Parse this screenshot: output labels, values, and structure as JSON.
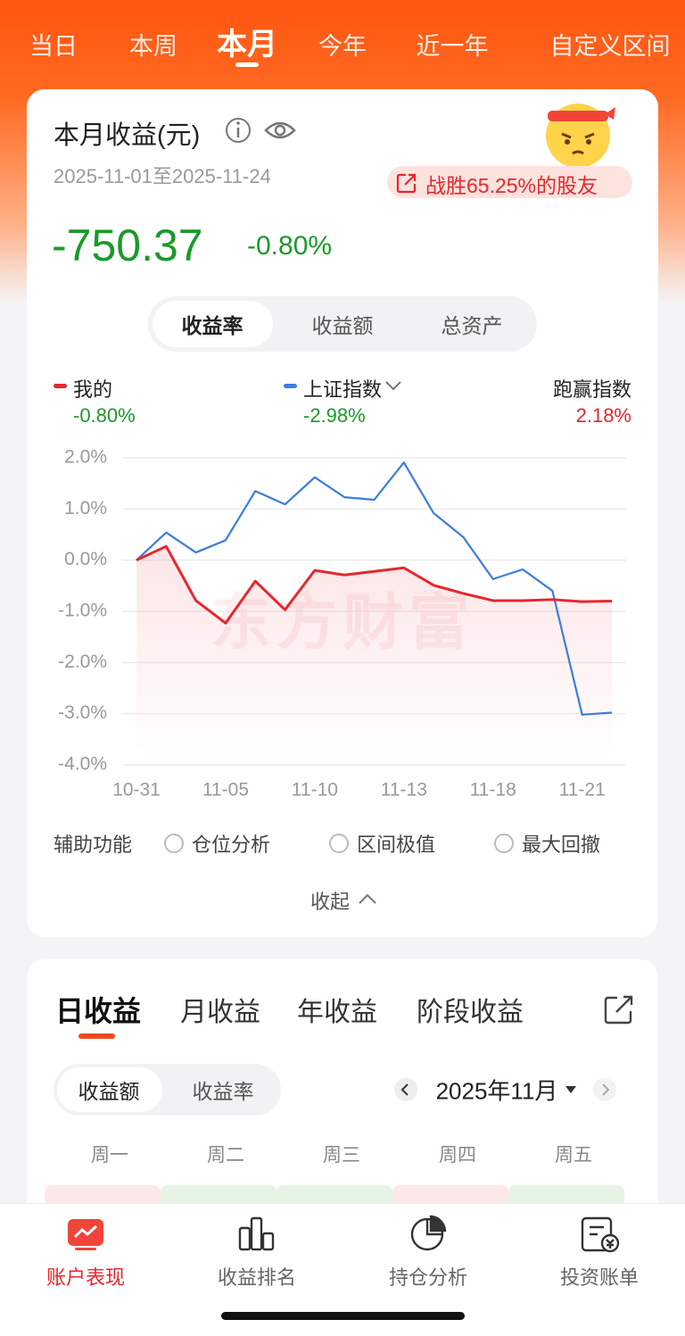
{
  "tabs": [
    "当日",
    "本周",
    "本月",
    "今年",
    "近一年",
    "自定义区间"
  ],
  "active_tab": 2,
  "summary": {
    "title": "本月收益(元)",
    "date_range": "2025-11-01至2025-11-24",
    "badge": "战胜65.25%的股友",
    "amount": "-750.37",
    "rate": "-0.80%"
  },
  "segments": [
    "收益率",
    "收益额",
    "总资产"
  ],
  "excess": {
    "label": "跑赢指数",
    "value": "2.18%"
  },
  "watermark": "东方财富",
  "chart_data": {
    "type": "line",
    "categories": [
      "10-31",
      null,
      null,
      "11-05",
      null,
      null,
      "11-10",
      null,
      null,
      "11-13",
      null,
      null,
      "11-18",
      null,
      null,
      "11-21",
      null
    ],
    "series": [
      {
        "name": "我的",
        "color": "#e8262d",
        "total_label": "-0.80%",
        "values": [
          0,
          0.27,
          -0.79,
          -1.23,
          -0.41,
          -0.97,
          -0.2,
          -0.29,
          -0.22,
          -0.15,
          -0.49,
          -0.65,
          -0.79,
          -0.79,
          -0.77,
          -0.81,
          -0.8
        ]
      },
      {
        "name": "上证指数",
        "color": "#3b7ddd",
        "total_label": "-2.98%",
        "values": [
          0,
          0.54,
          0.15,
          0.39,
          1.35,
          1.09,
          1.62,
          1.23,
          1.18,
          1.91,
          0.92,
          0.45,
          -0.37,
          -0.18,
          -0.6,
          -3.02,
          -2.98
        ]
      }
    ],
    "ylim": [
      -4,
      2
    ],
    "yticks": [
      {
        "value": 2,
        "label": "2.0%"
      },
      {
        "value": 1,
        "label": "1.0%"
      },
      {
        "value": 0,
        "label": "0.0%"
      },
      {
        "value": -1,
        "label": "-1.0%"
      },
      {
        "value": -2,
        "label": "-2.0%"
      },
      {
        "value": -3,
        "label": "-3.0%"
      },
      {
        "value": -4,
        "label": "-4.0%"
      }
    ],
    "grid": true
  },
  "aux": {
    "label": "辅助功能",
    "options": [
      "仓位分析",
      "区间极值",
      "最大回撤"
    ]
  },
  "collapse": "收起",
  "income_tabs": [
    "日收益",
    "月收益",
    "年收益",
    "阶段收益"
  ],
  "toggle": [
    "收益额",
    "收益率"
  ],
  "month": "2025年11月",
  "weekdays": [
    "周一",
    "周二",
    "周三",
    "周四",
    "周五"
  ],
  "nav": [
    "账户表现",
    "收益排名",
    "持仓分析",
    "投资账单"
  ]
}
